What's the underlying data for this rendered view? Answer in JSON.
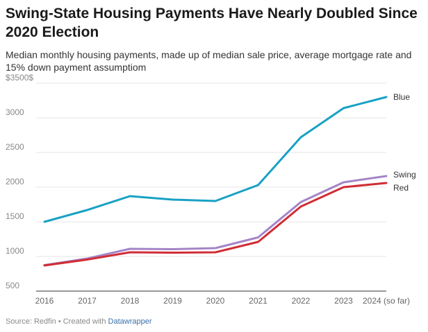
{
  "title": "Swing-State Housing Payments Have Nearly Doubled Since 2020 Election",
  "subtitle": "Median monthly housing payments, made up of median sale price, average mortgage rate and 15% down payment assumptiom",
  "footer": {
    "source": "Source: Redfin",
    "separator": " • ",
    "created_with": "Created with ",
    "tool": "Datawrapper"
  },
  "chart_data": {
    "type": "line",
    "categories": [
      "2016",
      "2017",
      "2018",
      "2019",
      "2020",
      "2021",
      "2022",
      "2023",
      "2024 (so far)"
    ],
    "y_ticks": [
      {
        "value": 500,
        "label": "500"
      },
      {
        "value": 1000,
        "label": "1000"
      },
      {
        "value": 1500,
        "label": "1500"
      },
      {
        "value": 2000,
        "label": "2000"
      },
      {
        "value": 2500,
        "label": "2500"
      },
      {
        "value": 3000,
        "label": "3000"
      },
      {
        "value": 3500,
        "label": "$3500$"
      }
    ],
    "ylim": [
      500,
      3500
    ],
    "grid": true,
    "legend": "direct labels at line ends",
    "series": [
      {
        "name": "Blue",
        "color": "#18a1c4",
        "values": [
          1500,
          1670,
          1870,
          1820,
          1800,
          2030,
          2720,
          3140,
          3300
        ]
      },
      {
        "name": "Swing",
        "color": "#a484c8",
        "values": [
          875,
          970,
          1110,
          1105,
          1120,
          1275,
          1785,
          2070,
          2160
        ]
      },
      {
        "name": "Red",
        "color": "#d12c35",
        "values": [
          870,
          955,
          1060,
          1055,
          1060,
          1210,
          1720,
          2000,
          2060
        ]
      }
    ]
  }
}
